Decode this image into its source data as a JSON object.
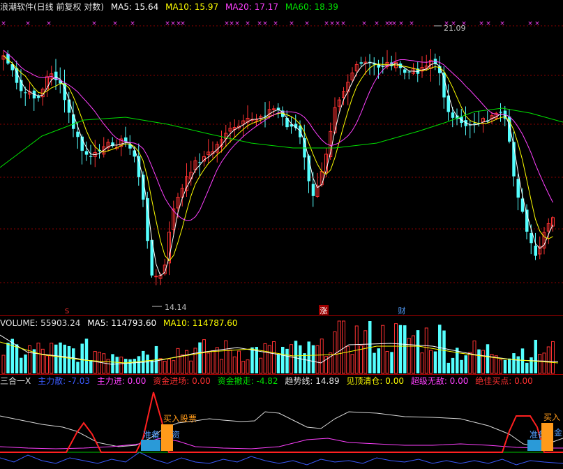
{
  "main_header": {
    "title": "浪潮软件(日线 前复权 对数)",
    "ma5": "MA5: 15.64",
    "ma10": "MA10: 15.97",
    "ma20": "MA20: 17.17",
    "ma60": "MA60: 18.39"
  },
  "volume_header": {
    "label": "VOLUME: 55903.24",
    "ma5": "MA5: 114793.60",
    "ma10": "MA10: 114787.60"
  },
  "indicator_header": {
    "name": "三合一X",
    "items": [
      {
        "label": "主力散: -7.03",
        "color": "#3b5bff"
      },
      {
        "label": "主力进: 0.00",
        "color": "#ff40ff"
      },
      {
        "label": "资金进场: 0.00",
        "color": "#ff3030"
      },
      {
        "label": "资金撤走: -4.82",
        "color": "#00e000"
      },
      {
        "label": "趋势线: 14.89",
        "color": "#e0e0e0"
      },
      {
        "label": "见顶清仓: 0.00",
        "color": "#ffff00"
      },
      {
        "label": "超级无敌: 0.00",
        "color": "#ff40ff"
      },
      {
        "label": "绝佳买点: 0.00",
        "color": "#ff3030"
      }
    ]
  },
  "annotations": {
    "high": "21.09",
    "low": "14.14",
    "event_zhang": "涨",
    "event_cai": "财",
    "event_mark": "S",
    "ready1": "准备",
    "buy1": "买入股票",
    "jin1": "资",
    "ready2": "准备",
    "buy2": "买入",
    "jin2": "金"
  },
  "colors": {
    "up": "#ff3232",
    "down": "#54ffff",
    "ma5": "#ffffff",
    "ma10": "#ffff00",
    "ma20": "#ff40ff",
    "ma60": "#00e000",
    "grid": "#8b0000"
  },
  "chart_data": {
    "type": "candlestick",
    "price_range": [
      14.14,
      21.09
    ],
    "scale": "log",
    "series": [
      {
        "name": "MA5",
        "last": 15.64
      },
      {
        "name": "MA10",
        "last": 15.97
      },
      {
        "name": "MA20",
        "last": 17.17
      },
      {
        "name": "MA60",
        "last": 18.39
      }
    ],
    "volume": {
      "last": 55903.24,
      "ma5": 114793.6,
      "ma10": 114787.6
    }
  }
}
